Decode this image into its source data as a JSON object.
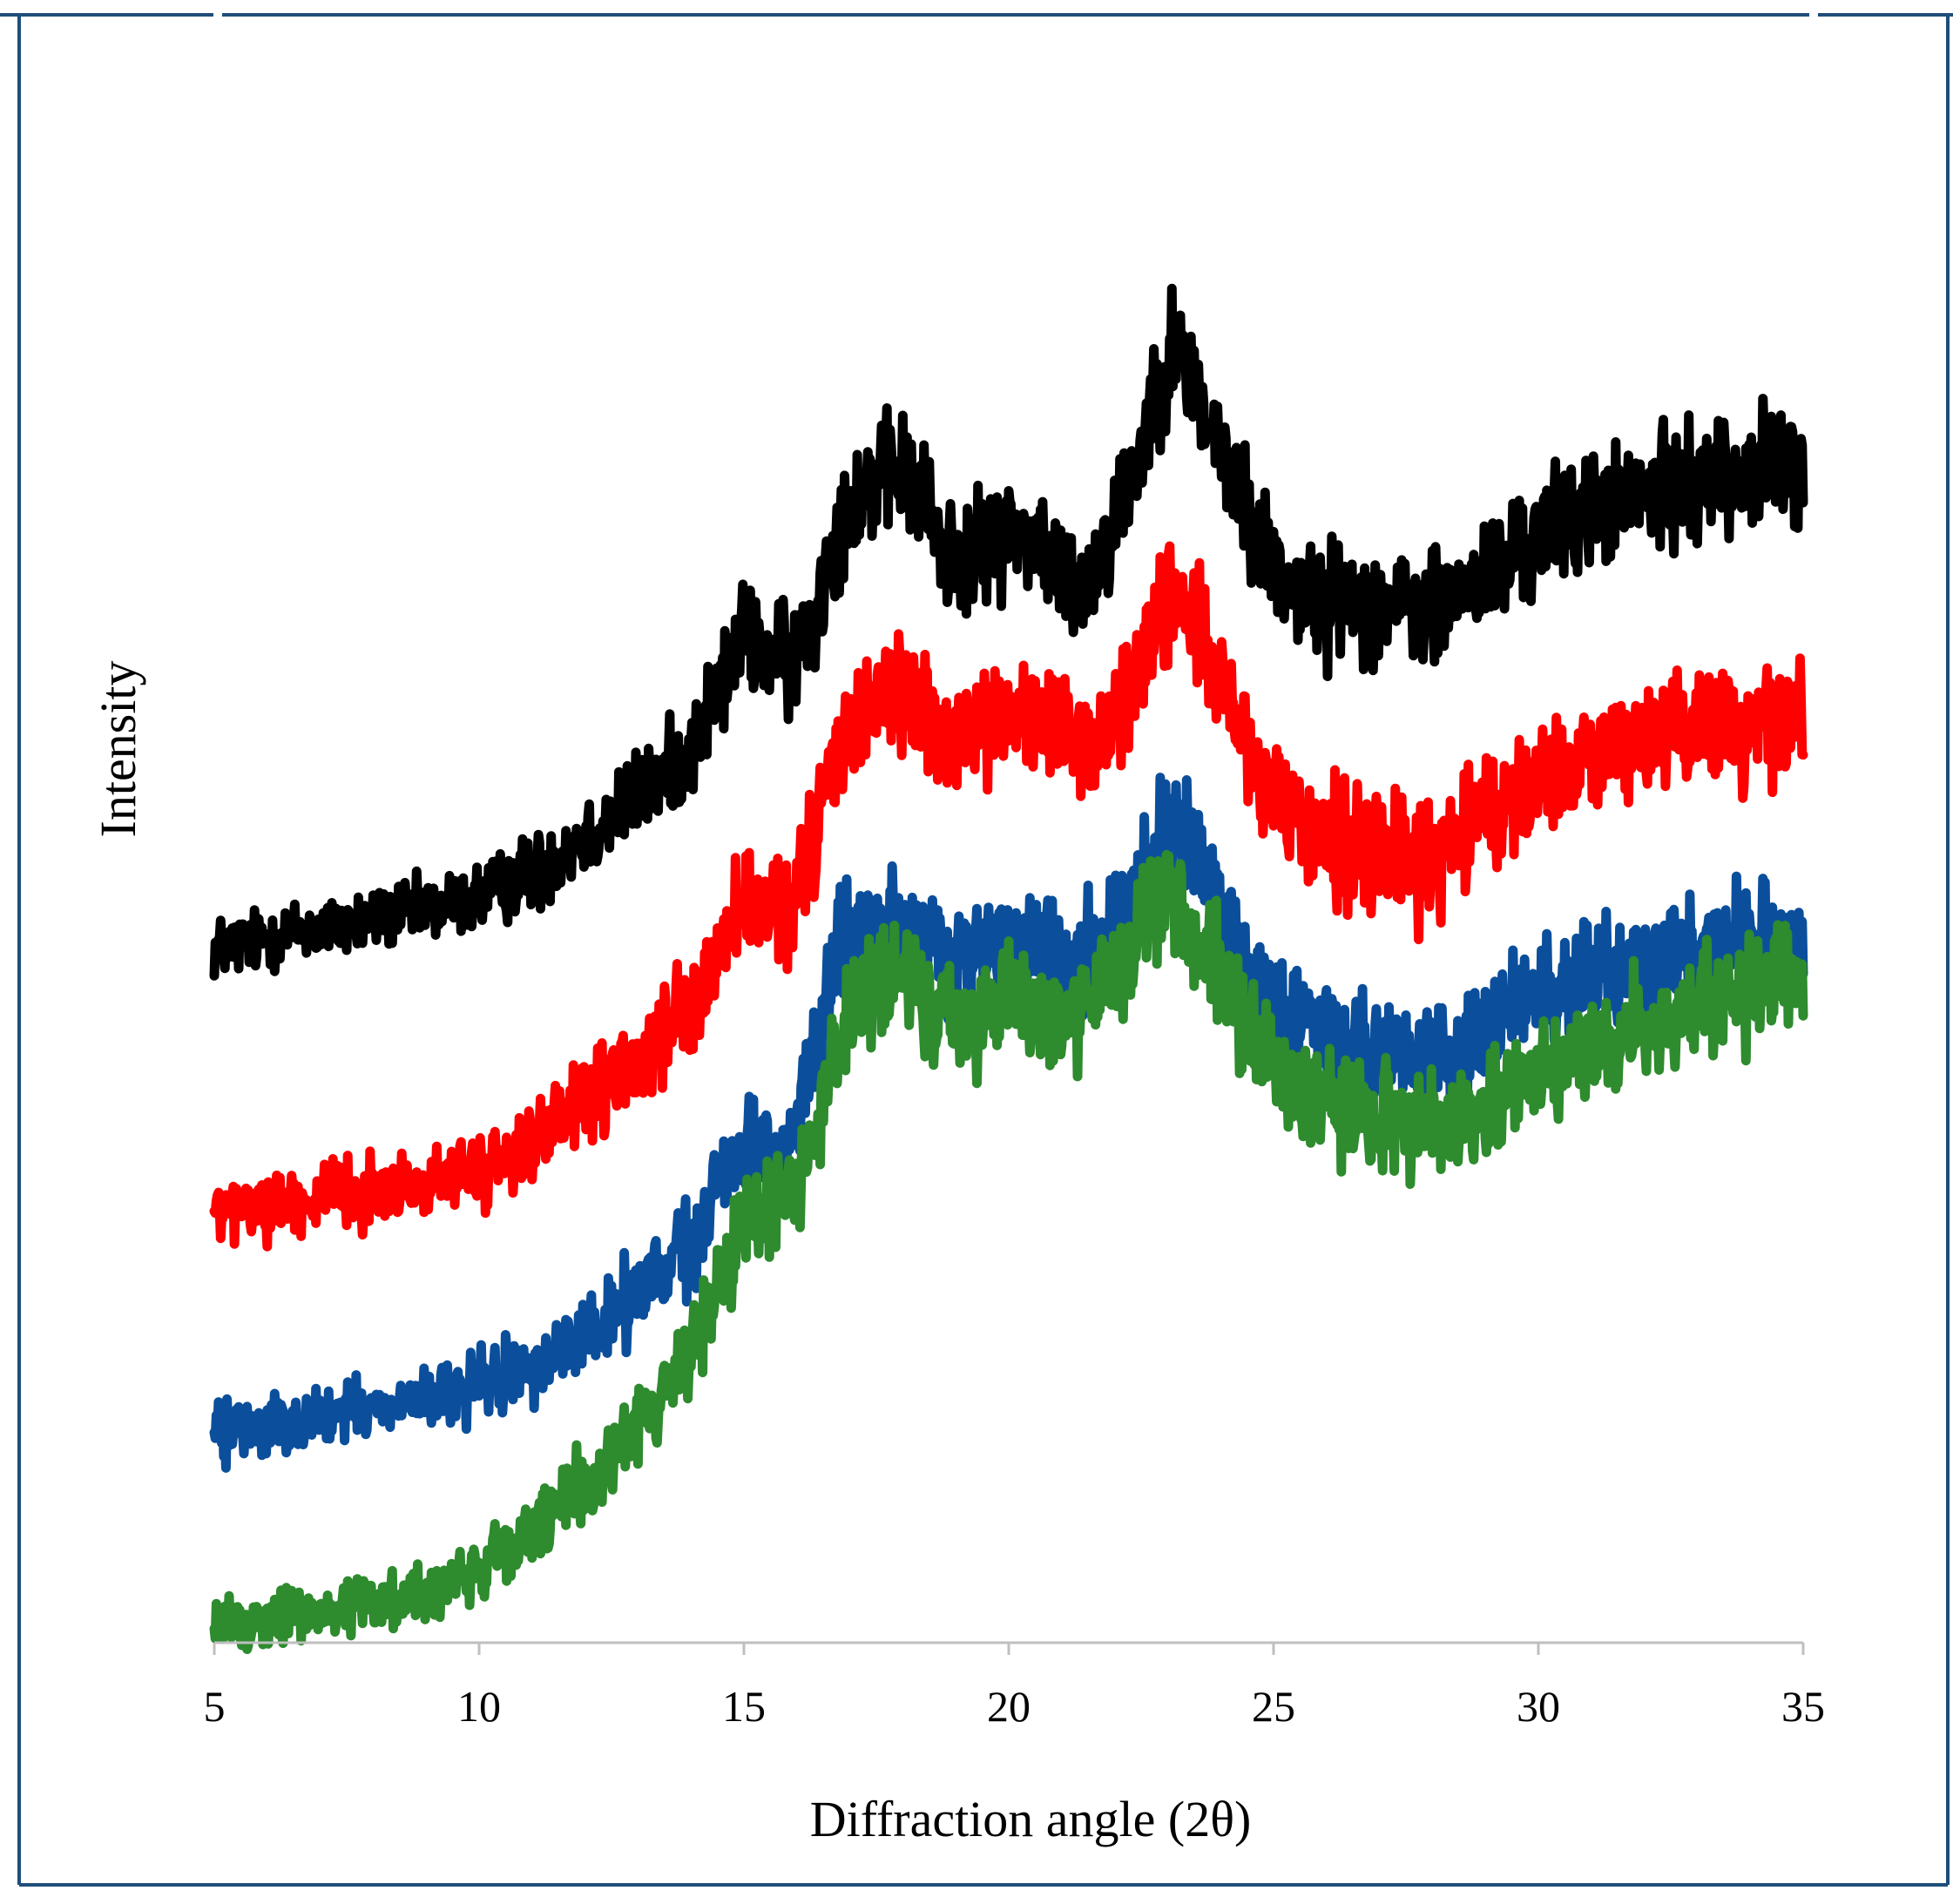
{
  "colors": {
    "frame": "#1f4e79",
    "axis": "#bfbfbf",
    "black_series": "#000000",
    "red_series": "#ff0000",
    "blue_series": "#0b4f9c",
    "green_series": "#2e8b2e"
  },
  "chart_data": {
    "type": "line",
    "title": "",
    "xlabel": "Diffraction angle (2θ)",
    "ylabel": "Intensity",
    "xlim": [
      5,
      35
    ],
    "ylim": [
      0,
      100
    ],
    "xticks": [
      "5",
      "10",
      "15",
      "20",
      "25",
      "30",
      "35"
    ],
    "y_ticks_shown": false,
    "grid": false,
    "legend": "none",
    "series": [
      {
        "name": "black",
        "color": "#000000",
        "noise": 1.8,
        "points": [
          [
            5,
            44.6
          ],
          [
            7,
            45.8
          ],
          [
            9,
            47.0
          ],
          [
            10,
            47.8
          ],
          [
            11,
            49.4
          ],
          [
            12,
            51.7
          ],
          [
            13,
            54.3
          ],
          [
            14,
            57.3
          ],
          [
            14.6,
            61.7
          ],
          [
            15.0,
            64.7
          ],
          [
            15.4,
            63.5
          ],
          [
            15.9,
            62.8
          ],
          [
            16.3,
            65.5
          ],
          [
            16.7,
            71.0
          ],
          [
            17.2,
            74.0
          ],
          [
            17.9,
            75.3
          ],
          [
            18.4,
            73.3
          ],
          [
            18.8,
            69.8
          ],
          [
            19.3,
            69.6
          ],
          [
            20.0,
            71.3
          ],
          [
            20.5,
            70.9
          ],
          [
            21.0,
            68.6
          ],
          [
            21.4,
            67.6
          ],
          [
            21.9,
            71.2
          ],
          [
            22.4,
            75.5
          ],
          [
            22.8,
            80.8
          ],
          [
            23.1,
            83.0
          ],
          [
            23.4,
            81.7
          ],
          [
            23.8,
            77.9
          ],
          [
            24.3,
            73.9
          ],
          [
            24.7,
            70.9
          ],
          [
            25.2,
            68.2
          ],
          [
            25.8,
            66.7
          ],
          [
            26.5,
            67.1
          ],
          [
            27.2,
            66.5
          ],
          [
            28.0,
            66.0
          ],
          [
            29.0,
            68.3
          ],
          [
            30.0,
            70.9
          ],
          [
            31.0,
            72.8
          ],
          [
            32.0,
            73.5
          ],
          [
            33.0,
            74.6
          ],
          [
            34.0,
            75.3
          ],
          [
            35.0,
            75.3
          ]
        ]
      },
      {
        "name": "red",
        "color": "#ff0000",
        "noise": 1.8,
        "points": [
          [
            5,
            27.6
          ],
          [
            7,
            28.5
          ],
          [
            9,
            29.4
          ],
          [
            10,
            30.2
          ],
          [
            11,
            32.1
          ],
          [
            12,
            34.5
          ],
          [
            13,
            37.2
          ],
          [
            14,
            40.2
          ],
          [
            14.6,
            45.0
          ],
          [
            15.0,
            47.2
          ],
          [
            15.5,
            46.7
          ],
          [
            15.9,
            47.0
          ],
          [
            16.3,
            51.2
          ],
          [
            16.7,
            56.6
          ],
          [
            17.2,
            59.9
          ],
          [
            17.9,
            61.0
          ],
          [
            18.4,
            59.8
          ],
          [
            18.9,
            57.1
          ],
          [
            19.4,
            58.7
          ],
          [
            20.0,
            59.8
          ],
          [
            20.5,
            59.5
          ],
          [
            21.0,
            57.8
          ],
          [
            21.5,
            57.1
          ],
          [
            22.0,
            59.5
          ],
          [
            22.5,
            63.0
          ],
          [
            22.9,
            66.7
          ],
          [
            23.2,
            67.0
          ],
          [
            23.6,
            64.4
          ],
          [
            24.1,
            60.4
          ],
          [
            24.6,
            56.6
          ],
          [
            25.0,
            53.3
          ],
          [
            25.6,
            52.0
          ],
          [
            26.4,
            51.7
          ],
          [
            27.2,
            50.4
          ],
          [
            28.0,
            50.4
          ],
          [
            29.0,
            52.6
          ],
          [
            30.0,
            55.3
          ],
          [
            31.0,
            56.9
          ],
          [
            32.0,
            57.8
          ],
          [
            33.0,
            58.8
          ],
          [
            34.0,
            59.2
          ],
          [
            35.0,
            59.1
          ]
        ]
      },
      {
        "name": "blue",
        "color": "#0b4f9c",
        "noise": 1.7,
        "points": [
          [
            5,
            13.5
          ],
          [
            7,
            14.4
          ],
          [
            9,
            15.6
          ],
          [
            10,
            16.4
          ],
          [
            11,
            17.7
          ],
          [
            12,
            19.6
          ],
          [
            13,
            22.3
          ],
          [
            14,
            25.5
          ],
          [
            14.6,
            29.5
          ],
          [
            15.0,
            32.0
          ],
          [
            15.5,
            31.1
          ],
          [
            15.9,
            32.3
          ],
          [
            16.3,
            37.2
          ],
          [
            16.7,
            43.2
          ],
          [
            17.2,
            45.1
          ],
          [
            17.9,
            46.0
          ],
          [
            18.4,
            45.0
          ],
          [
            18.9,
            43.3
          ],
          [
            19.5,
            44.8
          ],
          [
            20.0,
            45.6
          ],
          [
            20.5,
            45.1
          ],
          [
            21.0,
            43.8
          ],
          [
            21.5,
            44.0
          ],
          [
            22.0,
            46.2
          ],
          [
            22.5,
            48.8
          ],
          [
            22.9,
            52.1
          ],
          [
            23.2,
            51.6
          ],
          [
            23.7,
            48.9
          ],
          [
            24.2,
            45.5
          ],
          [
            24.7,
            42.1
          ],
          [
            25.1,
            40.6
          ],
          [
            25.8,
            39.8
          ],
          [
            26.5,
            38.6
          ],
          [
            27.2,
            37.6
          ],
          [
            28.0,
            37.6
          ],
          [
            29.0,
            39.4
          ],
          [
            30.0,
            41.3
          ],
          [
            31.0,
            42.7
          ],
          [
            32.0,
            43.4
          ],
          [
            33.0,
            44.5
          ],
          [
            34.0,
            45.1
          ],
          [
            35.0,
            44.9
          ]
        ]
      },
      {
        "name": "green",
        "color": "#2e8b2e",
        "noise": 1.7,
        "points": [
          [
            5,
            1.0
          ],
          [
            7,
            2.0
          ],
          [
            9,
            3.2
          ],
          [
            10,
            4.6
          ],
          [
            11,
            7.0
          ],
          [
            12,
            10.0
          ],
          [
            13,
            14.0
          ],
          [
            14,
            18.8
          ],
          [
            14.6,
            23.8
          ],
          [
            15.0,
            26.9
          ],
          [
            15.5,
            28.1
          ],
          [
            15.9,
            29.0
          ],
          [
            16.3,
            32.3
          ],
          [
            16.7,
            37.5
          ],
          [
            17.2,
            41.3
          ],
          [
            17.9,
            42.8
          ],
          [
            18.5,
            40.9
          ],
          [
            19.0,
            39.6
          ],
          [
            19.5,
            40.3
          ],
          [
            20.0,
            41.8
          ],
          [
            20.5,
            41.1
          ],
          [
            21.0,
            40.3
          ],
          [
            21.5,
            40.8
          ],
          [
            22.0,
            42.5
          ],
          [
            22.5,
            45.8
          ],
          [
            22.9,
            47.4
          ],
          [
            23.3,
            46.6
          ],
          [
            23.8,
            43.8
          ],
          [
            24.3,
            40.6
          ],
          [
            24.8,
            37.6
          ],
          [
            25.3,
            35.9
          ],
          [
            26.0,
            34.6
          ],
          [
            26.8,
            34.0
          ],
          [
            27.5,
            33.6
          ],
          [
            28.3,
            33.6
          ],
          [
            29.0,
            34.6
          ],
          [
            30.0,
            36.5
          ],
          [
            31.0,
            38.1
          ],
          [
            32.0,
            39.4
          ],
          [
            33.0,
            40.9
          ],
          [
            34.0,
            42.0
          ],
          [
            35.0,
            42.2
          ]
        ]
      }
    ]
  }
}
